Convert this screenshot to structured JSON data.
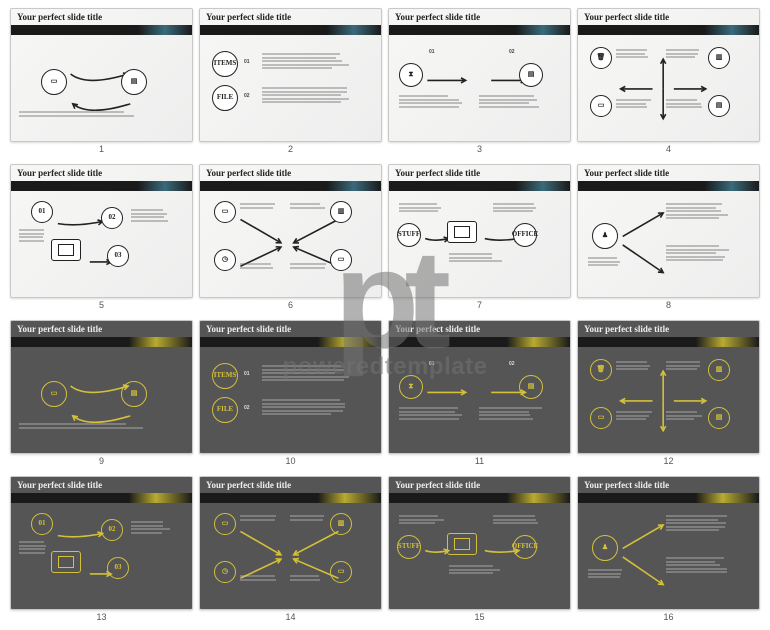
{
  "watermark": {
    "logo": "pt",
    "text": "poweredtemplate"
  },
  "slide_title": "Your perfect slide title",
  "lorem_short": "Lorem ipsum dolor sit amet, consectetur adipiscing elit.",
  "lorem_med": "Lorem ipsum dolor sit amet, consectetur adipiscing elit, sed do eiusmod tempor incididunt ut labore.",
  "light_theme": {
    "bg": "#f2f2f0",
    "band": "#1a1a1a",
    "accent": "#3a6a7a",
    "stroke": "#222222",
    "text": "#444444"
  },
  "dark_theme": {
    "bg": "#555555",
    "band": "#1a1a1a",
    "accent": "#b8aa30",
    "stroke": "#d4c03a",
    "text": "#dddddd"
  },
  "labels": {
    "items": "ITEMS",
    "file": "FILE",
    "stuff": "STUFF",
    "office": "OFFICE",
    "n01": "01",
    "n02": "02",
    "n03": "03"
  },
  "slides": [
    {
      "n": 1,
      "theme": "light",
      "layout": "cycle"
    },
    {
      "n": 2,
      "theme": "light",
      "layout": "items-file"
    },
    {
      "n": 3,
      "theme": "light",
      "layout": "hourglass"
    },
    {
      "n": 4,
      "theme": "light",
      "layout": "cross"
    },
    {
      "n": 5,
      "theme": "light",
      "layout": "nums-123"
    },
    {
      "n": 6,
      "theme": "light",
      "layout": "converge"
    },
    {
      "n": 7,
      "theme": "light",
      "layout": "stuff-office"
    },
    {
      "n": 8,
      "theme": "light",
      "layout": "pawn-diverge"
    },
    {
      "n": 9,
      "theme": "dark",
      "layout": "cycle"
    },
    {
      "n": 10,
      "theme": "dark",
      "layout": "items-file"
    },
    {
      "n": 11,
      "theme": "dark",
      "layout": "hourglass"
    },
    {
      "n": 12,
      "theme": "dark",
      "layout": "cross"
    },
    {
      "n": 13,
      "theme": "dark",
      "layout": "nums-123"
    },
    {
      "n": 14,
      "theme": "dark",
      "layout": "converge"
    },
    {
      "n": 15,
      "theme": "dark",
      "layout": "stuff-office"
    },
    {
      "n": 16,
      "theme": "dark",
      "layout": "pawn-diverge"
    }
  ]
}
